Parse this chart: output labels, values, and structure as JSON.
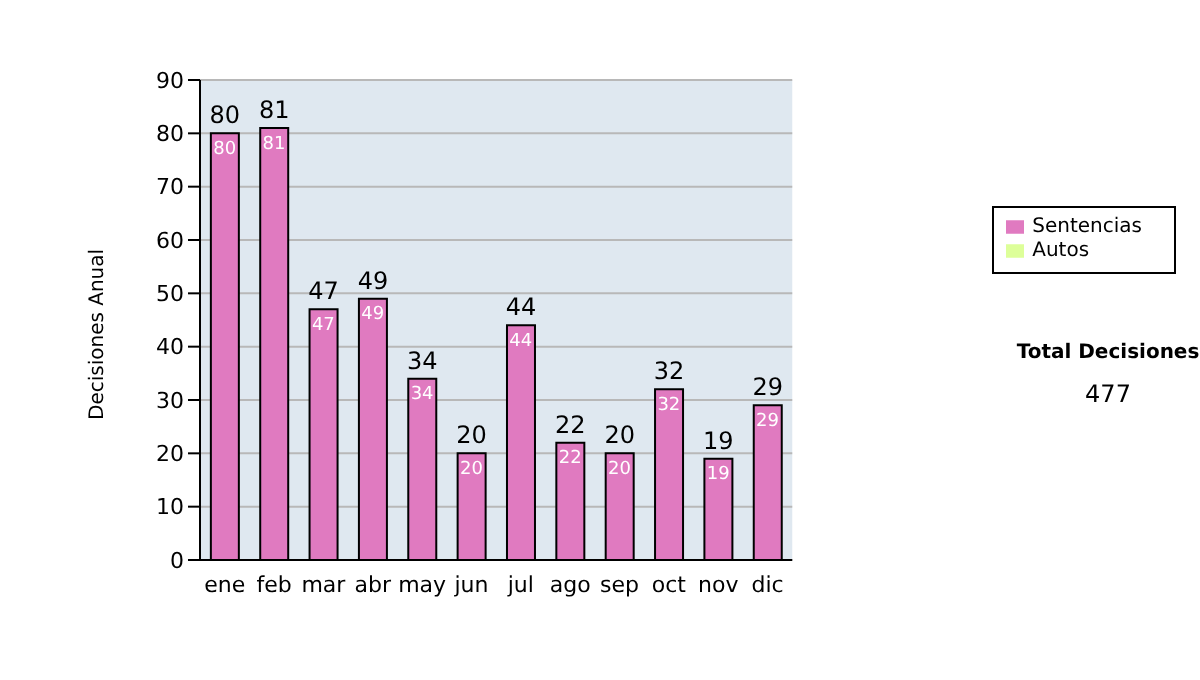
{
  "chart_data": {
    "type": "bar",
    "ylabel": "Decisiones Anual",
    "categories": [
      "ene",
      "feb",
      "mar",
      "abr",
      "may",
      "jun",
      "jul",
      "ago",
      "sep",
      "oct",
      "nov",
      "dic"
    ],
    "series": [
      {
        "name": "Sentencias",
        "color": "#e07ac0",
        "values": [
          80,
          81,
          47,
          49,
          34,
          20,
          44,
          22,
          20,
          32,
          19,
          29
        ]
      },
      {
        "name": "Autos",
        "color": "#ddff99",
        "values": [
          null,
          null,
          null,
          null,
          null,
          null,
          null,
          null,
          null,
          null,
          null,
          null
        ]
      }
    ],
    "ylim": [
      0,
      90
    ],
    "yticks": [
      0,
      10,
      20,
      30,
      40,
      50,
      60,
      70,
      80,
      90
    ],
    "grid": "y",
    "legend": "right",
    "data_labels": true,
    "stacked": true,
    "annotations": [
      "Total Decisiones",
      "477",
      {
        "text": "80",
        "x": "ene",
        "y": 80
      },
      {
        "text": "81",
        "x": "feb",
        "y": 81
      },
      {
        "text": "47",
        "x": "mar",
        "y": 47
      },
      {
        "text": "49",
        "x": "abr",
        "y": 49
      },
      {
        "text": "34",
        "x": "may",
        "y": 34
      },
      {
        "text": "20",
        "x": "jun",
        "y": 20
      },
      {
        "text": "44",
        "x": "jul",
        "y": 44
      },
      {
        "text": "22",
        "x": "ago",
        "y": 22
      },
      {
        "text": "20",
        "x": "sep",
        "y": 20
      },
      {
        "text": "32",
        "x": "oct",
        "y": 32
      },
      {
        "text": "19",
        "x": "nov",
        "y": 19
      },
      {
        "text": "29",
        "x": "dic",
        "y": 29
      }
    ]
  }
}
